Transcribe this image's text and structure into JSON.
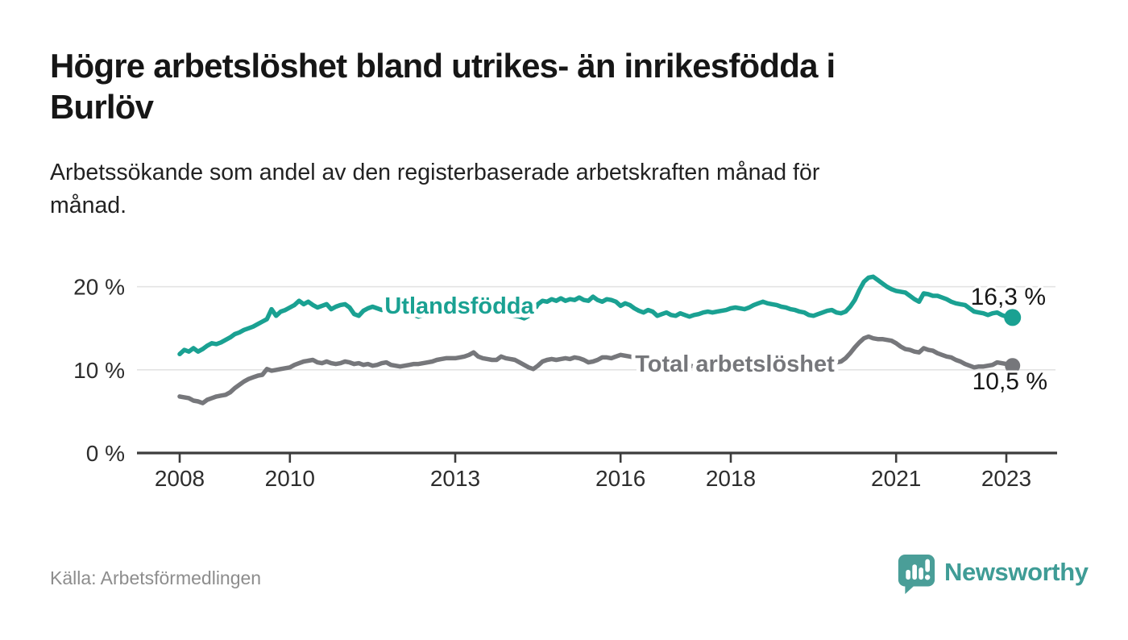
{
  "header": {
    "title": "Högre arbetslöshet bland utrikes- än inrikesfödda i Burlöv",
    "title_lines": [
      "Högre arbetslöshet bland utrikes- än inrikesfödda i",
      "Burlöv"
    ],
    "subtitle": "Arbetssökande som andel av den registerbaserade arbetskraften månad för månad.",
    "subtitle_lines": [
      "Arbetssökande som andel av den registerbaserade arbetskraften månad för",
      "månad."
    ]
  },
  "footer": {
    "source": "Källa: Arbetsförmedlingen",
    "brand": "Newsworthy",
    "logo_icon": "bar-chart-speech-bubble-icon"
  },
  "colors": {
    "accent_teal": "#1aa192",
    "line_gray": "#76777b",
    "grid": "#e3e3e3",
    "axis": "#3c3c3c",
    "tick_text": "#2d2d2d",
    "value_text": "#161616",
    "source_text": "#8d8d8d",
    "logo_teal": "#4a9e98"
  },
  "chart_data": {
    "type": "line",
    "title": "Högre arbetslöshet bland utrikes- än inrikesfödda i Burlöv",
    "xlabel": "",
    "ylabel": "",
    "unit": "%",
    "x_start_year": 2008,
    "x_step_months": 1,
    "x_end_label_month": "2023-02",
    "ylim": [
      0,
      22
    ],
    "y_ticks": [
      0,
      10,
      20
    ],
    "y_tick_labels": [
      "0 %",
      "10 %",
      "20 %"
    ],
    "x_tick_years": [
      2008,
      2010,
      2013,
      2016,
      2018,
      2021,
      2023
    ],
    "grid": "horizontal",
    "legend_position": "inline-labels",
    "series": [
      {
        "name": "Utlandsfödda",
        "color": "#1aa192",
        "end_value": 16.3,
        "end_label": "16,3 %",
        "values": [
          11.9,
          12.4,
          12.2,
          12.6,
          12.2,
          12.5,
          12.9,
          13.2,
          13.1,
          13.3,
          13.6,
          13.9,
          14.3,
          14.5,
          14.8,
          15.0,
          15.2,
          15.5,
          15.8,
          16.1,
          17.3,
          16.5,
          17.0,
          17.2,
          17.5,
          17.8,
          18.3,
          17.9,
          18.2,
          17.8,
          17.5,
          17.7,
          17.9,
          17.3,
          17.6,
          17.8,
          17.9,
          17.5,
          16.7,
          16.5,
          17.1,
          17.4,
          17.6,
          17.4,
          17.2,
          17.4,
          17.1,
          17.0,
          16.9,
          17.1,
          16.8,
          16.6,
          16.4,
          16.6,
          16.9,
          17.0,
          17.2,
          17.1,
          17.3,
          17.4,
          17.5,
          17.3,
          17.6,
          17.4,
          17.6,
          17.5,
          17.3,
          17.2,
          17.0,
          16.8,
          16.9,
          16.7,
          16.6,
          16.5,
          16.4,
          16.2,
          16.5,
          17.0,
          17.9,
          18.3,
          18.2,
          18.5,
          18.3,
          18.6,
          18.3,
          18.5,
          18.4,
          18.7,
          18.4,
          18.3,
          18.8,
          18.4,
          18.2,
          18.5,
          18.4,
          18.2,
          17.7,
          18.0,
          17.8,
          17.4,
          17.1,
          16.9,
          17.2,
          17.0,
          16.5,
          16.7,
          16.9,
          16.6,
          16.5,
          16.8,
          16.6,
          16.4,
          16.6,
          16.7,
          16.9,
          17.0,
          16.9,
          17.0,
          17.1,
          17.2,
          17.4,
          17.5,
          17.4,
          17.3,
          17.5,
          17.8,
          18.0,
          18.2,
          18.0,
          17.9,
          17.8,
          17.6,
          17.5,
          17.3,
          17.2,
          17.0,
          16.9,
          16.6,
          16.5,
          16.7,
          16.9,
          17.1,
          17.2,
          16.9,
          16.8,
          17.0,
          17.6,
          18.4,
          19.6,
          20.6,
          21.1,
          21.2,
          20.8,
          20.4,
          20.0,
          19.7,
          19.5,
          19.4,
          19.3,
          18.9,
          18.5,
          18.2,
          19.2,
          19.1,
          18.9,
          18.9,
          18.7,
          18.5,
          18.2,
          18.0,
          17.9,
          17.8,
          17.4,
          17.0,
          16.9,
          16.8,
          16.6,
          16.8,
          16.9,
          16.6,
          16.4,
          16.3
        ]
      },
      {
        "name": "Total arbetslöshet",
        "color": "#76777b",
        "end_value": 10.5,
        "end_label": "10,5 %",
        "values": [
          6.8,
          6.7,
          6.6,
          6.3,
          6.2,
          6.0,
          6.4,
          6.6,
          6.8,
          6.9,
          7.0,
          7.3,
          7.8,
          8.2,
          8.6,
          8.9,
          9.1,
          9.3,
          9.4,
          10.1,
          9.9,
          10.0,
          10.1,
          10.2,
          10.3,
          10.6,
          10.8,
          11.0,
          11.1,
          11.2,
          10.9,
          10.8,
          11.0,
          10.8,
          10.7,
          10.8,
          11.0,
          10.9,
          10.7,
          10.8,
          10.6,
          10.7,
          10.5,
          10.6,
          10.8,
          10.9,
          10.6,
          10.5,
          10.4,
          10.5,
          10.6,
          10.7,
          10.7,
          10.8,
          10.9,
          11.0,
          11.2,
          11.3,
          11.4,
          11.4,
          11.4,
          11.5,
          11.6,
          11.8,
          12.1,
          11.6,
          11.4,
          11.3,
          11.2,
          11.2,
          11.6,
          11.4,
          11.3,
          11.2,
          10.9,
          10.6,
          10.3,
          10.1,
          10.5,
          11.0,
          11.2,
          11.3,
          11.2,
          11.3,
          11.4,
          11.3,
          11.5,
          11.4,
          11.2,
          10.9,
          11.0,
          11.2,
          11.5,
          11.5,
          11.4,
          11.6,
          11.8,
          11.7,
          11.6,
          11.5,
          11.4,
          11.3,
          11.2,
          11.1,
          11.0,
          10.9,
          10.9,
          10.8,
          10.7,
          10.6,
          10.6,
          10.5,
          10.4,
          10.4,
          10.3,
          10.3,
          10.2,
          10.2,
          10.2,
          10.2,
          10.2,
          10.1,
          10.1,
          10.0,
          10.0,
          10.0,
          10.0,
          10.1,
          10.1,
          10.1,
          10.1,
          10.1,
          10.1,
          10.1,
          10.2,
          10.2,
          10.3,
          10.3,
          10.4,
          10.4,
          10.5,
          10.6,
          10.8,
          10.9,
          11.0,
          11.4,
          12.0,
          12.7,
          13.3,
          13.8,
          14.0,
          13.8,
          13.7,
          13.7,
          13.6,
          13.5,
          13.2,
          12.8,
          12.5,
          12.4,
          12.2,
          12.1,
          12.6,
          12.4,
          12.3,
          12.0,
          11.8,
          11.6,
          11.5,
          11.2,
          11.0,
          10.7,
          10.5,
          10.3,
          10.4,
          10.4,
          10.5,
          10.6,
          10.9,
          10.8,
          10.7,
          10.5
        ]
      }
    ]
  }
}
